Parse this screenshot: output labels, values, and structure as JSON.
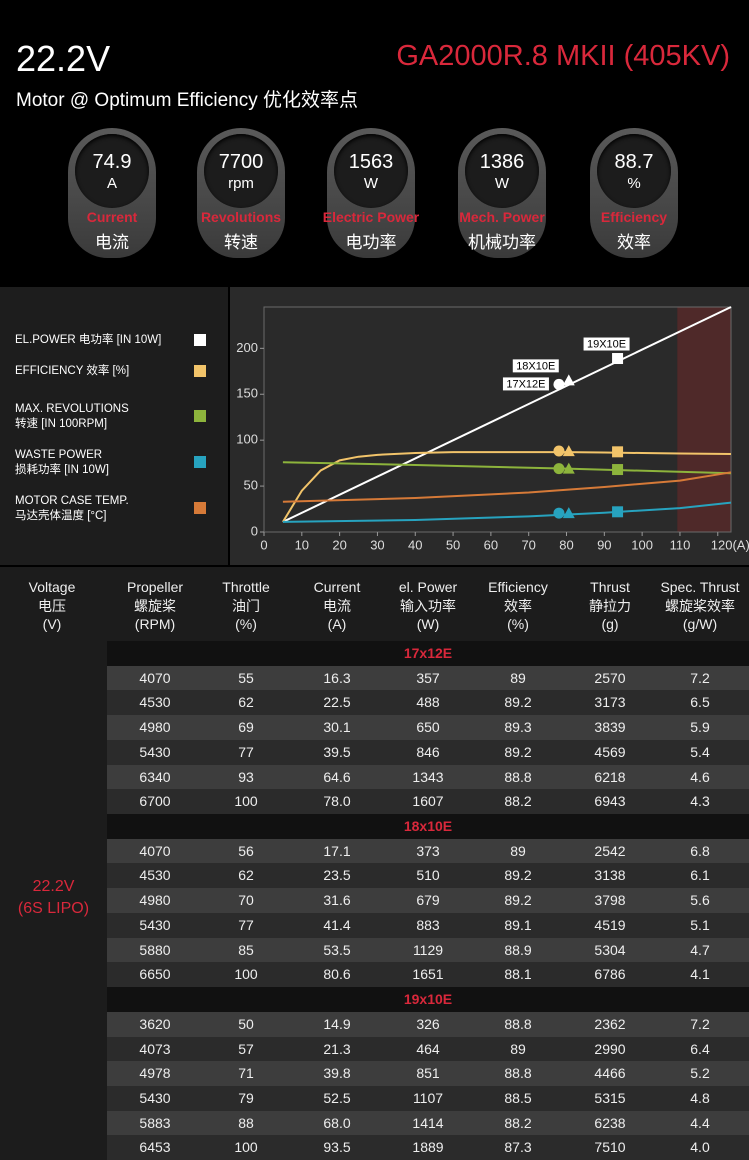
{
  "header": {
    "voltage": "22.2V",
    "model": "GA2000R.8 MKII (405KV)",
    "subtitle": "Motor @ Optimum Efficiency  优化效率点"
  },
  "gauges": [
    {
      "value": "74.9",
      "unit": "A",
      "label_en": "Current",
      "label_cn": "电流"
    },
    {
      "value": "7700",
      "unit": "rpm",
      "label_en": "Revolutions",
      "label_cn": "转速"
    },
    {
      "value": "1563",
      "unit": "W",
      "label_en": "Electric Power",
      "label_cn": "电功率"
    },
    {
      "value": "1386",
      "unit": "W",
      "label_en": "Mech. Power",
      "label_cn": "机械功率"
    },
    {
      "value": "88.7",
      "unit": "%",
      "label_en": "Efficiency",
      "label_cn": "效率"
    }
  ],
  "chart_data": {
    "type": "line",
    "xlim": [
      0,
      123.5
    ],
    "ylim": [
      0,
      245
    ],
    "xticks": [
      0,
      10,
      20,
      30,
      40,
      50,
      60,
      70,
      80,
      90,
      100,
      110,
      {
        "value": 120,
        "label": "120(A)"
      }
    ],
    "yticks": [
      0,
      50,
      100,
      150,
      200
    ],
    "highlight_xrange": [
      109.3,
      123.5
    ],
    "points_x": [
      78.0,
      80.6,
      93.5
    ],
    "point_shapes": [
      "circle",
      "triangle",
      "square"
    ],
    "point_labels": [
      "17X12E",
      "18X10E",
      "19X10E"
    ],
    "series": [
      {
        "name": "EL.POWER 电功率 [IN 10W]",
        "color": "#ffffff",
        "x": [
          5,
          123.5
        ],
        "values": [
          11,
          245
        ],
        "points": [
          160.7,
          165.1,
          188.9
        ],
        "labeled": true
      },
      {
        "name": "EFFICIENCY 效率 [%]",
        "color": "#f2c46a",
        "x": [
          5,
          10,
          15,
          20,
          25,
          30,
          40,
          50,
          60,
          70,
          80,
          90,
          100,
          110,
          123.5
        ],
        "values": [
          11,
          45,
          67,
          78,
          82,
          84,
          86,
          87,
          87,
          87,
          87,
          86.5,
          86,
          85.5,
          85
        ],
        "points": [
          88.2,
          88.1,
          87.3
        ]
      },
      {
        "name": "MAX. REVOLUTIONS\n转速 [IN 100RPM]",
        "color": "#8db43c",
        "x": [
          5,
          40,
          80,
          123.5
        ],
        "values": [
          76,
          73,
          69,
          64
        ],
        "points": [
          69,
          69,
          68
        ]
      },
      {
        "name": "WASTE POWER\n损耗功率 [IN 10W]",
        "color": "#27a3bf",
        "x": [
          5,
          40,
          70,
          90,
          110,
          123.5
        ],
        "values": [
          11,
          13,
          17,
          21,
          26,
          32
        ],
        "points": [
          20.6,
          20.6,
          22
        ]
      },
      {
        "name": "MOTOR CASE TEMP.\n马达壳体温度 [°C]",
        "color": "#d67a38",
        "x": [
          5,
          40,
          70,
          90,
          110,
          123.5
        ],
        "values": [
          33,
          37,
          43,
          49,
          56,
          65
        ]
      }
    ]
  },
  "table": {
    "columns": [
      "Voltage\n电压\n(V)",
      "Propeller\n螺旋桨\n(RPM)",
      "Throttle\n油门\n(%)",
      "Current\n电流\n(A)",
      "el. Power\n输入功率\n(W)",
      "Efficiency\n效率\n(%)",
      "Thrust\n静拉力\n(g)",
      "Spec. Thrust\n螺旋桨效率\n(g/W)"
    ],
    "voltage": "22.2V\n(6S LIPO)",
    "sections": [
      {
        "title": "17x12E",
        "rows": [
          [
            "4070",
            "55",
            "16.3",
            "357",
            "89",
            "2570",
            "7.2"
          ],
          [
            "4530",
            "62",
            "22.5",
            "488",
            "89.2",
            "3173",
            "6.5"
          ],
          [
            "4980",
            "69",
            "30.1",
            "650",
            "89.3",
            "3839",
            "5.9"
          ],
          [
            "5430",
            "77",
            "39.5",
            "846",
            "89.2",
            "4569",
            "5.4"
          ],
          [
            "6340",
            "93",
            "64.6",
            "1343",
            "88.8",
            "6218",
            "4.6"
          ],
          [
            "6700",
            "100",
            "78.0",
            "1607",
            "88.2",
            "6943",
            "4.3"
          ]
        ]
      },
      {
        "title": "18x10E",
        "rows": [
          [
            "4070",
            "56",
            "17.1",
            "373",
            "89",
            "2542",
            "6.8"
          ],
          [
            "4530",
            "62",
            "23.5",
            "510",
            "89.2",
            "3138",
            "6.1"
          ],
          [
            "4980",
            "70",
            "31.6",
            "679",
            "89.2",
            "3798",
            "5.6"
          ],
          [
            "5430",
            "77",
            "41.4",
            "883",
            "89.1",
            "4519",
            "5.1"
          ],
          [
            "5880",
            "85",
            "53.5",
            "1129",
            "88.9",
            "5304",
            "4.7"
          ],
          [
            "6650",
            "100",
            "80.6",
            "1651",
            "88.1",
            "6786",
            "4.1"
          ]
        ]
      },
      {
        "title": "19x10E",
        "rows": [
          [
            "3620",
            "50",
            "14.9",
            "326",
            "88.8",
            "2362",
            "7.2"
          ],
          [
            "4073",
            "57",
            "21.3",
            "464",
            "89",
            "2990",
            "6.4"
          ],
          [
            "4978",
            "71",
            "39.8",
            "851",
            "88.8",
            "4466",
            "5.2"
          ],
          [
            "5430",
            "79",
            "52.5",
            "1107",
            "88.5",
            "5315",
            "4.8"
          ],
          [
            "5883",
            "88",
            "68.0",
            "1414",
            "88.2",
            "6238",
            "4.4"
          ],
          [
            "6453",
            "100",
            "93.5",
            "1889",
            "87.3",
            "7510",
            "4.0"
          ]
        ]
      }
    ]
  }
}
